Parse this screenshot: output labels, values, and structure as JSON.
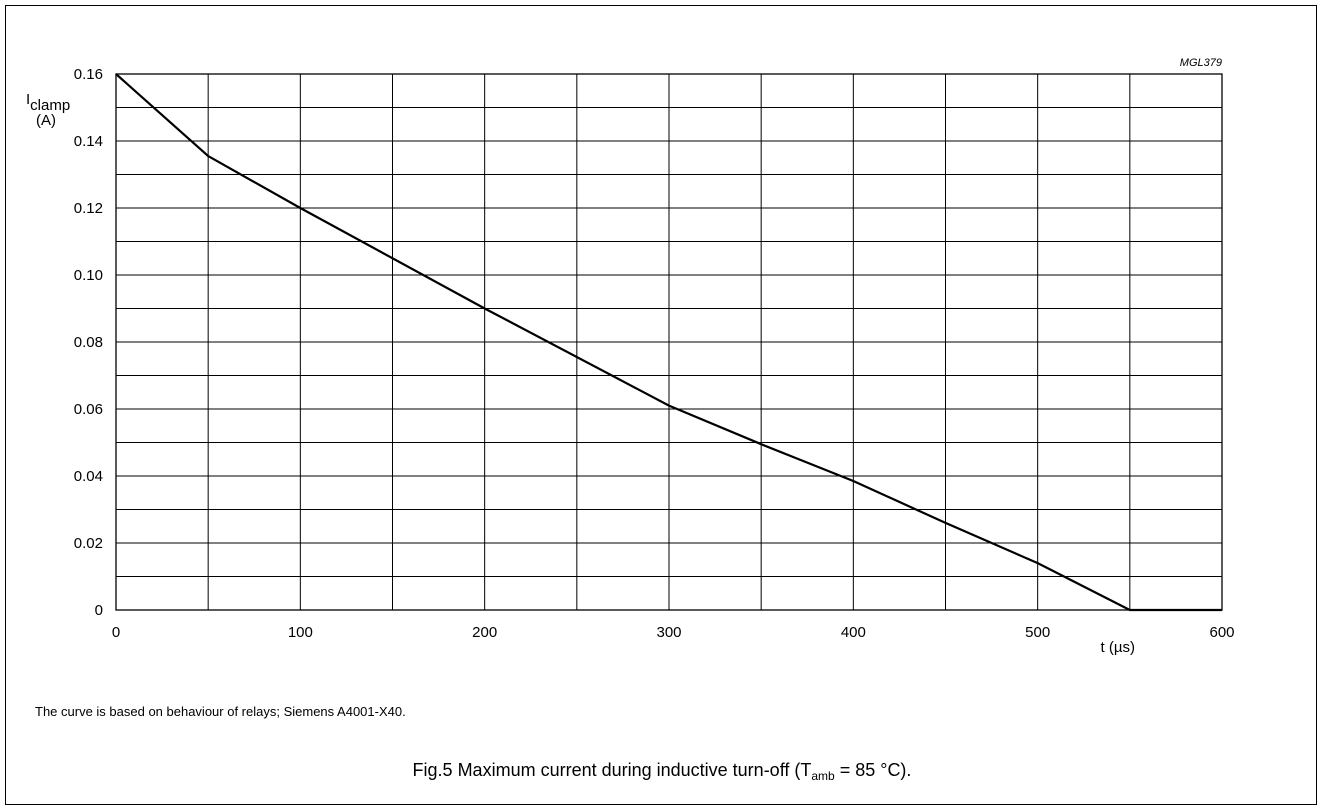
{
  "chart_data": {
    "type": "line",
    "code": "MGL379",
    "ylabel": {
      "symbol": "I",
      "subscript": "clamp",
      "unit": "(A)"
    },
    "xlabel": "t (µs)",
    "xlim": [
      0,
      600
    ],
    "ylim": [
      0,
      0.16
    ],
    "x_ticks": [
      0,
      100,
      200,
      300,
      400,
      500,
      600
    ],
    "x_tick_labels": [
      "0",
      "100",
      "200",
      "300",
      "400",
      "500",
      "600"
    ],
    "x_minor_step": 50,
    "y_ticks": [
      0,
      0.02,
      0.04,
      0.06,
      0.08,
      0.1,
      0.12,
      0.14,
      0.16
    ],
    "y_tick_labels": [
      "0",
      "0.02",
      "0.04",
      "0.06",
      "0.08",
      "0.10",
      "0.12",
      "0.14",
      "0.16"
    ],
    "y_minor_step": 0.01,
    "grid": true,
    "series": [
      {
        "x": [
          0,
          50,
          100,
          200,
          300,
          350,
          400,
          450,
          500,
          550,
          600
        ],
        "y": [
          0.16,
          0.1355,
          0.12,
          0.09,
          0.061,
          0.0495,
          0.0385,
          0.026,
          0.014,
          0,
          0
        ]
      }
    ]
  },
  "footnote": "The curve is based on behaviour of relays; Siemens A4001-X40.",
  "caption": {
    "prefix": "Fig.5  Maximum current during inductive turn-off (T",
    "subscript": "amb",
    "suffix": " = 85 °C)."
  }
}
